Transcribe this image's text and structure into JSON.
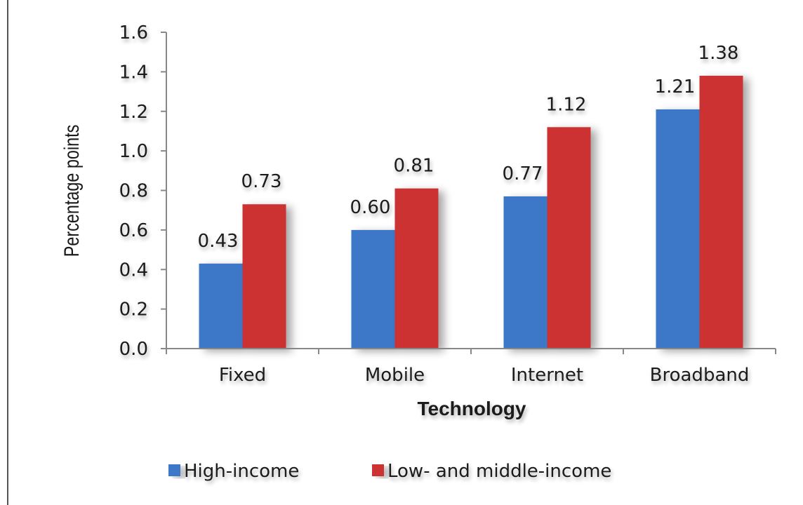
{
  "chart_data": {
    "type": "bar",
    "categories": [
      "Fixed",
      "Mobile",
      "Internet",
      "Broadband"
    ],
    "series": [
      {
        "name": "High-income",
        "values": [
          0.43,
          0.6,
          0.77,
          1.21
        ],
        "color": "#3c78c8"
      },
      {
        "name": "Low- and middle-income",
        "values": [
          0.73,
          0.81,
          1.12,
          1.38
        ],
        "color": "#cc3333"
      }
    ],
    "data_labels": [
      [
        "0.43",
        "0.60",
        "0.77",
        "1.21"
      ],
      [
        "0.73",
        "0.81",
        "1.12",
        "1.38"
      ]
    ],
    "title": "",
    "xlabel": "Technology",
    "ylabel": "Percentage points",
    "ylim": [
      0,
      1.6
    ],
    "yticks": [
      0.0,
      0.2,
      0.4,
      0.6,
      0.8,
      1.0,
      1.2,
      1.4,
      1.6
    ],
    "ytick_labels": [
      "0.0",
      "0.2",
      "0.4",
      "0.6",
      "0.8",
      "1.0",
      "1.2",
      "1.4",
      "1.6"
    ],
    "grid": false,
    "legend_position": "bottom"
  }
}
